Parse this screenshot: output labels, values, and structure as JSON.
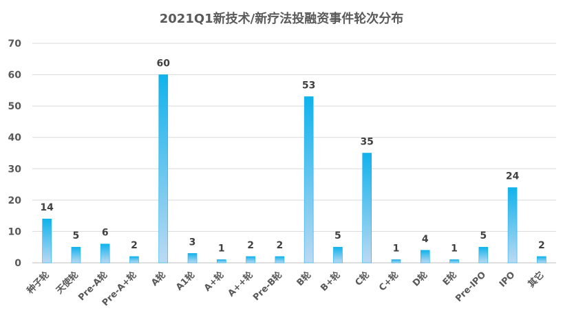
{
  "chart_data": {
    "type": "bar",
    "title": "2021Q1新技术/新疗法投融资事件轮次分布",
    "xlabel": "",
    "ylabel": "",
    "categories": [
      "种子轮",
      "天使轮",
      "Pre-A轮",
      "Pre-A+轮",
      "A轮",
      "A1轮",
      "A+轮",
      "A++轮",
      "Pre-B轮",
      "B轮",
      "B+轮",
      "C轮",
      "C+轮",
      "D轮",
      "E轮",
      "Pre-IPO",
      "IPO",
      "其它"
    ],
    "values": [
      14,
      5,
      6,
      2,
      60,
      3,
      1,
      2,
      2,
      53,
      5,
      35,
      1,
      4,
      1,
      5,
      24,
      2
    ],
    "ylim": [
      0,
      70
    ],
    "yticks": [
      0,
      10,
      20,
      30,
      40,
      50,
      60,
      70
    ],
    "grid": true,
    "legend": "none",
    "colors": {
      "bar_top": "#10b2ec",
      "bar_bottom": "#bcd9f2"
    }
  }
}
